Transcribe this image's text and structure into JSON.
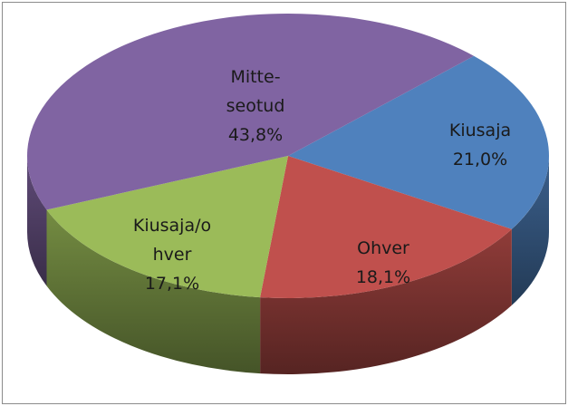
{
  "chart_data": {
    "type": "pie3d",
    "categories": [
      "Kiusaja",
      "Ohver",
      "Kiusaja/ohver",
      "Mitte-seotud"
    ],
    "values": [
      21.0,
      18.1,
      17.1,
      43.8
    ],
    "value_labels": [
      "21,0%",
      "18,1%",
      "17,1%",
      "43,8%"
    ],
    "colors": [
      "#4f81bd",
      "#c0504d",
      "#9bbb59",
      "#8064a2"
    ]
  }
}
